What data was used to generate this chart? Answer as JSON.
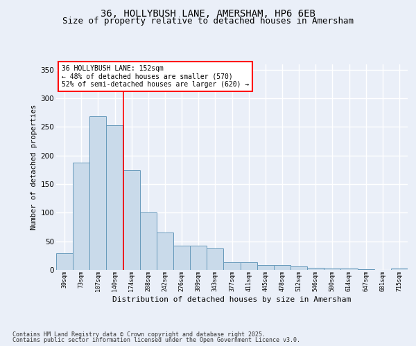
{
  "title_line1": "36, HOLLYBUSH LANE, AMERSHAM, HP6 6EB",
  "title_line2": "Size of property relative to detached houses in Amersham",
  "xlabel": "Distribution of detached houses by size in Amersham",
  "ylabel": "Number of detached properties",
  "categories": [
    "39sqm",
    "73sqm",
    "107sqm",
    "140sqm",
    "174sqm",
    "208sqm",
    "242sqm",
    "276sqm",
    "309sqm",
    "343sqm",
    "377sqm",
    "411sqm",
    "445sqm",
    "478sqm",
    "512sqm",
    "546sqm",
    "580sqm",
    "614sqm",
    "647sqm",
    "681sqm",
    "715sqm"
  ],
  "values": [
    29,
    188,
    269,
    253,
    174,
    100,
    65,
    42,
    42,
    38,
    13,
    13,
    8,
    8,
    6,
    4,
    3,
    3,
    1,
    0,
    2
  ],
  "bar_color": "#c9daea",
  "bar_edge_color": "#6699bb",
  "background_color": "#eaeff8",
  "grid_color": "#ffffff",
  "annotation_box_text": "36 HOLLYBUSH LANE: 152sqm\n← 48% of detached houses are smaller (570)\n52% of semi-detached houses are larger (620) →",
  "red_line_x": 3.5,
  "ylim": [
    0,
    360
  ],
  "yticks": [
    0,
    50,
    100,
    150,
    200,
    250,
    300,
    350
  ],
  "footnote_line1": "Contains HM Land Registry data © Crown copyright and database right 2025.",
  "footnote_line2": "Contains public sector information licensed under the Open Government Licence v3.0.",
  "title_fontsize": 10,
  "subtitle_fontsize": 9
}
